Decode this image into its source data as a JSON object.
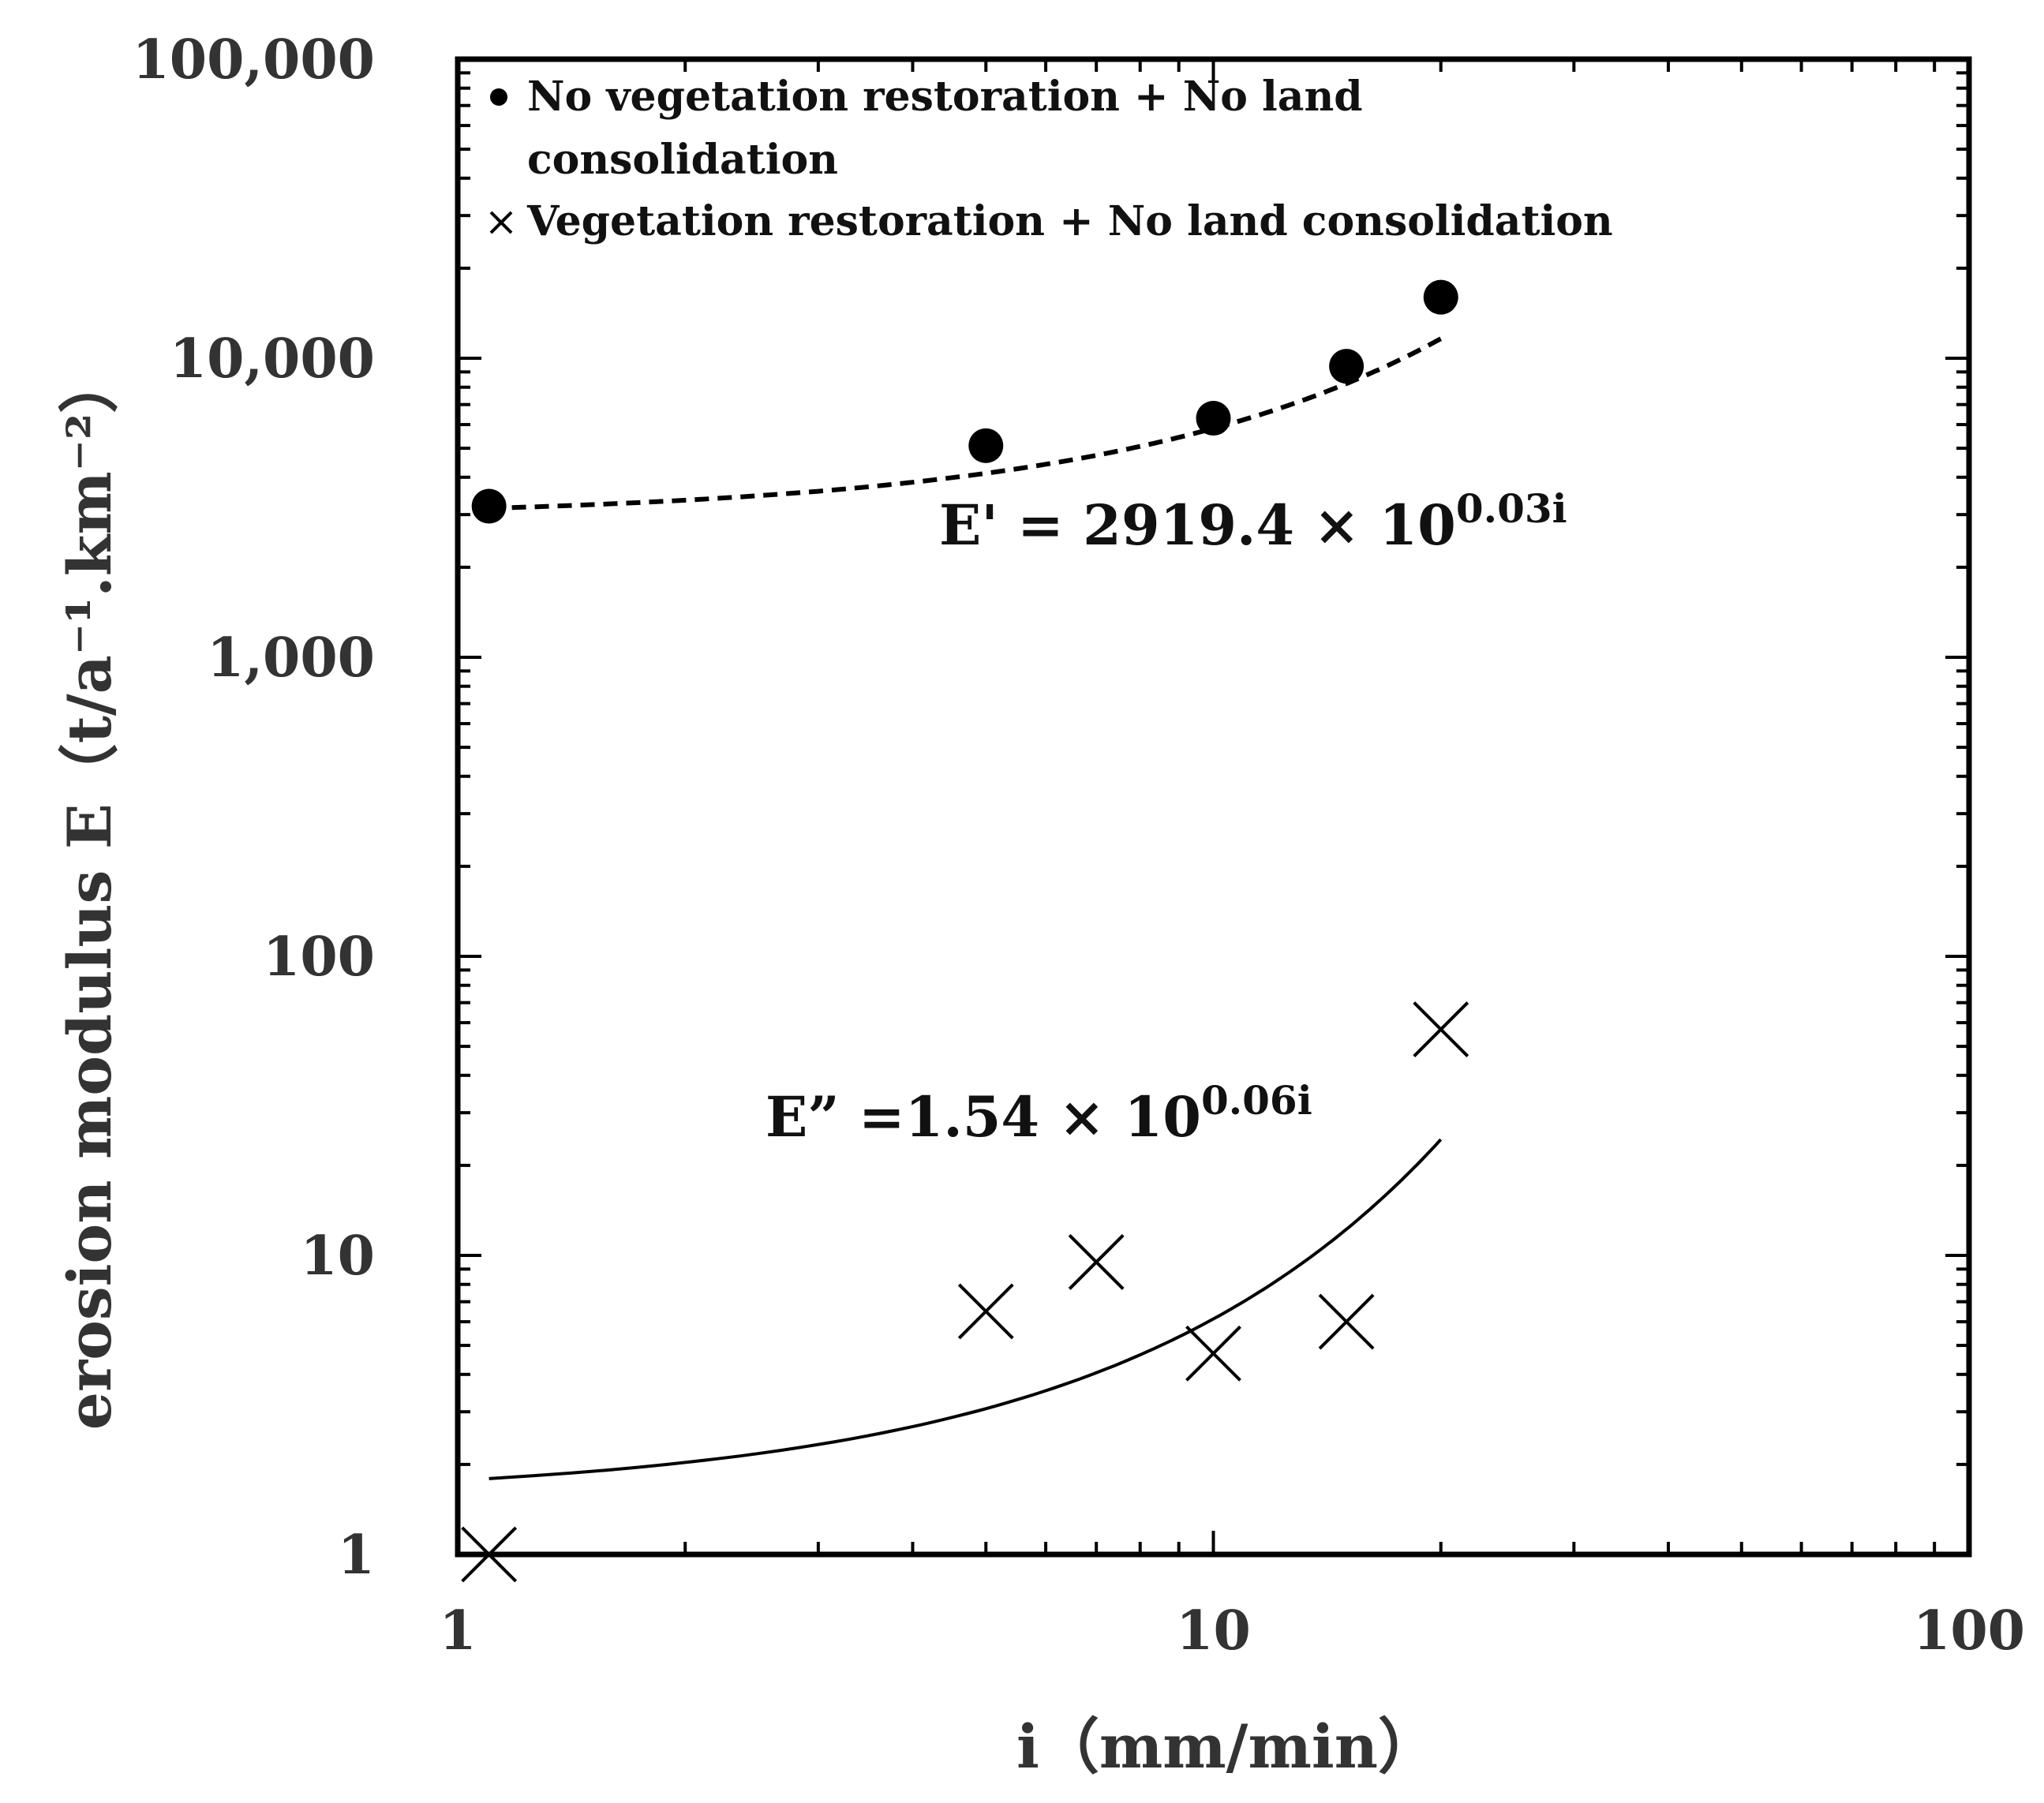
{
  "chart_data": {
    "type": "scatter",
    "title": "",
    "xlabel": "i（mm/min）",
    "ylabel": "erosion modulus  E（t/a⁻¹.km⁻²）",
    "xscale": "log",
    "yscale": "log",
    "xlim": [
      1,
      100
    ],
    "ylim": [
      1,
      100000
    ],
    "x_ticks": [
      1,
      10,
      100
    ],
    "x_tick_labels": [
      "1",
      "10",
      "100"
    ],
    "y_ticks": [
      1,
      10,
      100,
      1000,
      10000,
      100000
    ],
    "y_tick_labels": [
      "1",
      "10",
      "100",
      "1,000",
      "10,000",
      "100,000"
    ],
    "grid": false,
    "legend_position": "top-left",
    "series": [
      {
        "name": "No vegetation restoration + No land consolidation",
        "legend_lines": [
          "No vegetation restoration + No land",
          "consolidation"
        ],
        "marker": "circle",
        "x": [
          1.1,
          5,
          10,
          15,
          20
        ],
        "y": [
          3200,
          5100,
          6300,
          9400,
          16000
        ],
        "fit": {
          "equation": "E' = 2919.4 × 10",
          "exponent": "0.03i",
          "a": 2919.4,
          "b": 0.03,
          "style": "dashed",
          "x_range": [
            1.1,
            20
          ]
        }
      },
      {
        "name": "Vegetation restoration + No land consolidation",
        "legend_lines": [
          "Vegetation restoration + No land consolidation"
        ],
        "marker": "x",
        "x": [
          1.1,
          5,
          7,
          10,
          15,
          20
        ],
        "y": [
          1,
          6.5,
          9.5,
          4.7,
          6,
          57
        ],
        "fit": {
          "equation": "E” =1.54 × 10",
          "exponent": "0.06i",
          "a": 1.54,
          "b": 0.06,
          "style": "solid",
          "x_range": [
            1.1,
            20
          ]
        }
      }
    ]
  }
}
